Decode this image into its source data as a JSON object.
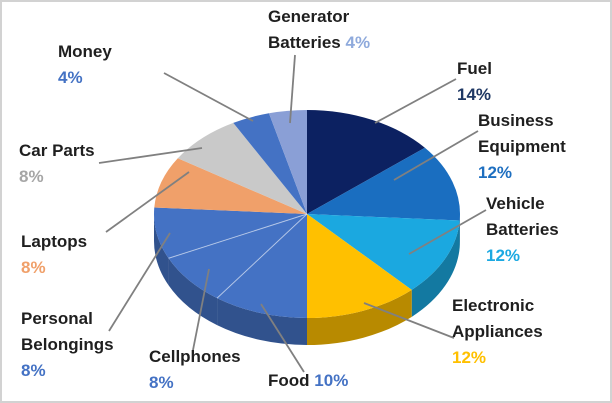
{
  "chart_data": {
    "type": "pie",
    "style": "3d-pie",
    "title": "",
    "direction": "clockwise",
    "start_angle_deg": 0,
    "legend": "none",
    "data_labels": "outside-with-leader-lines",
    "unit": "%",
    "categories": [
      "Fuel",
      "Business Equipment",
      "Vehicle Batteries",
      "Electronic Appliances",
      "Food",
      "Cellphones",
      "Personal Belongings",
      "Laptops",
      "Car Parts",
      "Money",
      "Generator Batteries"
    ],
    "values": [
      14,
      12,
      12,
      12,
      10,
      8,
      8,
      8,
      8,
      4,
      4
    ],
    "colors": [
      "#0C2161",
      "#1A6EC0",
      "#1BA8E0",
      "#FFC000",
      "#4472C4",
      "#4472C4",
      "#4472C4",
      "#F0A06A",
      "#C9C9C9",
      "#4472C4",
      "#8A9FD6"
    ],
    "leader_line_color": "#808080"
  },
  "labels": {
    "fuel": {
      "line1": "Fuel",
      "pct": "14%",
      "pct_color": "#1F3864"
    },
    "business": {
      "line1": "Business",
      "line2": "Equipment",
      "pct": "12%",
      "pct_color": "#1E6FC0"
    },
    "vehicle": {
      "line1": "Vehicle",
      "line2": "Batteries",
      "pct": "12%",
      "pct_color": "#1CA9E2"
    },
    "electronic": {
      "line1": "Electronic",
      "line2": "Appliances",
      "pct": "12%",
      "pct_color": "#FFC000"
    },
    "food": {
      "line1": "Food",
      "pct": "10%",
      "pct_color": "#4472C4"
    },
    "cellphones": {
      "line1": "Cellphones",
      "pct": "8%",
      "pct_color": "#4472C4"
    },
    "personal": {
      "line1": "Personal",
      "line2": "Belongings",
      "pct": "8%",
      "pct_color": "#4472C4"
    },
    "laptops": {
      "line1": "Laptops",
      "pct": "8%",
      "pct_color": "#F0A06A"
    },
    "carparts": {
      "line1": "Car Parts",
      "pct": "8%",
      "pct_color": "#A6A6A6"
    },
    "money": {
      "line1": "Money",
      "pct": "4%",
      "pct_color": "#4472C4"
    },
    "generator": {
      "line1": "Generator",
      "line2": "Batteries",
      "pct": "4%",
      "pct_color": "#8FAADC"
    }
  }
}
